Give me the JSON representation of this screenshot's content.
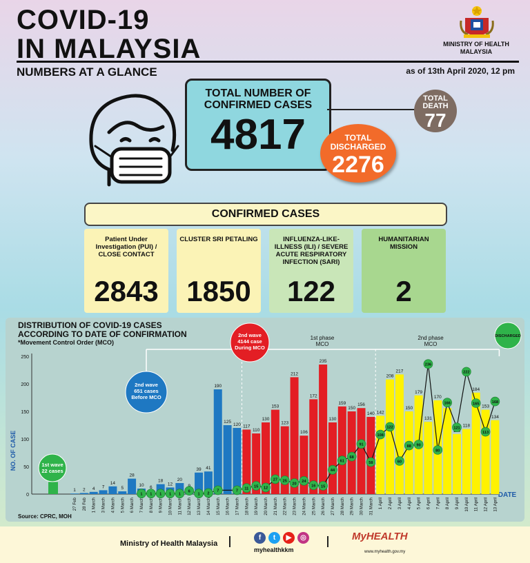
{
  "header": {
    "title_line1": "COVID-19",
    "title_line2": "IN MALAYSIA",
    "ministry": "MINISTRY OF HEALTH MALAYSIA",
    "subtitle": "NUMBERS AT A GLANCE",
    "as_of": "as of 13th April 2020, 12 pm"
  },
  "totals": {
    "confirmed_label": "TOTAL NUMBER OF CONFIRMED CASES",
    "confirmed": "4817",
    "death_label": "TOTAL DEATH",
    "death": "77",
    "discharged_label": "TOTAL DISCHARGED",
    "discharged": "2276"
  },
  "confirmed_cases": {
    "heading": "CONFIRMED CASES",
    "cards": [
      {
        "label": "Patient Under Investigation (PUI) / CLOSE CONTACT",
        "value": "2843"
      },
      {
        "label": "CLUSTER SRI PETALING",
        "value": "1850"
      },
      {
        "label": "INFLUENZA-LIKE-ILLNESS (ILI) / SEVERE ACUTE RESPIRATORY INFECTION (SARI)",
        "value": "122"
      },
      {
        "label": "HUMANITARIAN MISSION",
        "value": "2"
      }
    ]
  },
  "chart_data": {
    "type": "bar",
    "title": "DISTRIBUTION OF COVID-19 CASES ACCORDING TO DATE OF CONFIRMATION",
    "note": "*Movement Control Order (MCO)",
    "ylabel": "NO. OF CASE",
    "xlabel": "DATE",
    "ylim": [
      0,
      250
    ],
    "yticks": [
      0,
      50,
      100,
      150,
      200,
      250
    ],
    "categories": [
      "27 Feb",
      "28 Feb",
      "1 March",
      "3 March",
      "4 March",
      "5 March",
      "6 March",
      "7 March",
      "8 March",
      "9 March",
      "10 March",
      "11 March",
      "12 March",
      "13 March",
      "14 March",
      "15 March",
      "16 March",
      "17 March",
      "18 March",
      "19 March",
      "20 March",
      "21 March",
      "22 March",
      "23 March",
      "24 March",
      "25 March",
      "26 March",
      "27 March",
      "28 March",
      "29 March",
      "30 March",
      "31 March",
      "1 April",
      "2 April",
      "3 April",
      "4 April",
      "5 April",
      "6 April",
      "7 April",
      "8 April",
      "9 April",
      "10 April",
      "11 April",
      "12 April",
      "13 April"
    ],
    "values": [
      1,
      2,
      4,
      7,
      14,
      5,
      28,
      10,
      6,
      18,
      12,
      20,
      9,
      39,
      41,
      190,
      125,
      120,
      117,
      110,
      130,
      153,
      123,
      212,
      106,
      172,
      235,
      130,
      159,
      150,
      156,
      140,
      142,
      208,
      217,
      150,
      179,
      131,
      170,
      156,
      109,
      118,
      184,
      153,
      134
    ],
    "phase": [
      "wave2_pre",
      "wave2_pre",
      "wave2_pre",
      "wave2_pre",
      "wave2_pre",
      "wave2_pre",
      "wave2_pre",
      "wave2_pre",
      "wave2_pre",
      "wave2_pre",
      "wave2_pre",
      "wave2_pre",
      "wave2_pre",
      "wave2_pre",
      "wave2_pre",
      "wave2_pre",
      "wave2_pre",
      "wave2_pre",
      "mco1",
      "mco1",
      "mco1",
      "mco1",
      "mco1",
      "mco1",
      "mco1",
      "mco1",
      "mco1",
      "mco1",
      "mco1",
      "mco1",
      "mco1",
      "mco1",
      "mco2",
      "mco2",
      "mco2",
      "mco2",
      "mco2",
      "mco2",
      "mco2",
      "mco2",
      "mco2",
      "mco2",
      "mco2",
      "mco2",
      "mco2"
    ],
    "discharged": [
      null,
      null,
      null,
      null,
      null,
      null,
      null,
      1,
      1,
      1,
      1,
      1,
      6,
      1,
      2,
      7,
      null,
      7,
      11,
      15,
      12,
      27,
      25,
      20,
      24,
      16,
      15,
      44,
      61,
      68,
      91,
      58,
      108,
      122,
      60,
      88,
      90,
      236,
      80,
      166,
      121,
      222,
      165,
      113,
      168
    ],
    "first_wave_label": "1st wave 22 cases",
    "first_wave_value": 22,
    "wave2_label": "2nd wave 651 cases Before MCO",
    "mco_wave_label": "2nd wave 4144 case During MCO",
    "phase1_label": "1st phase MCO",
    "phase2_label": "2nd phase MCO",
    "legend_discharged": "DISCHARGED",
    "colors": {
      "wave1": "#2fb34a",
      "pre_mco": "#1e78c2",
      "mco1": "#e31e24",
      "mco2": "#fff200",
      "discharged_dot": "#2fb34a",
      "line": "#111111"
    },
    "grid": false
  },
  "source": "Source: CPRC, MOH",
  "footer": {
    "ministry": "Ministry of Health Malaysia",
    "handle": "myhealthkkm",
    "brand": "MyHEALTH",
    "url": "www.myhealth.gov.my",
    "social_icons": [
      "facebook-icon",
      "twitter-icon",
      "youtube-icon",
      "instagram-icon"
    ]
  }
}
